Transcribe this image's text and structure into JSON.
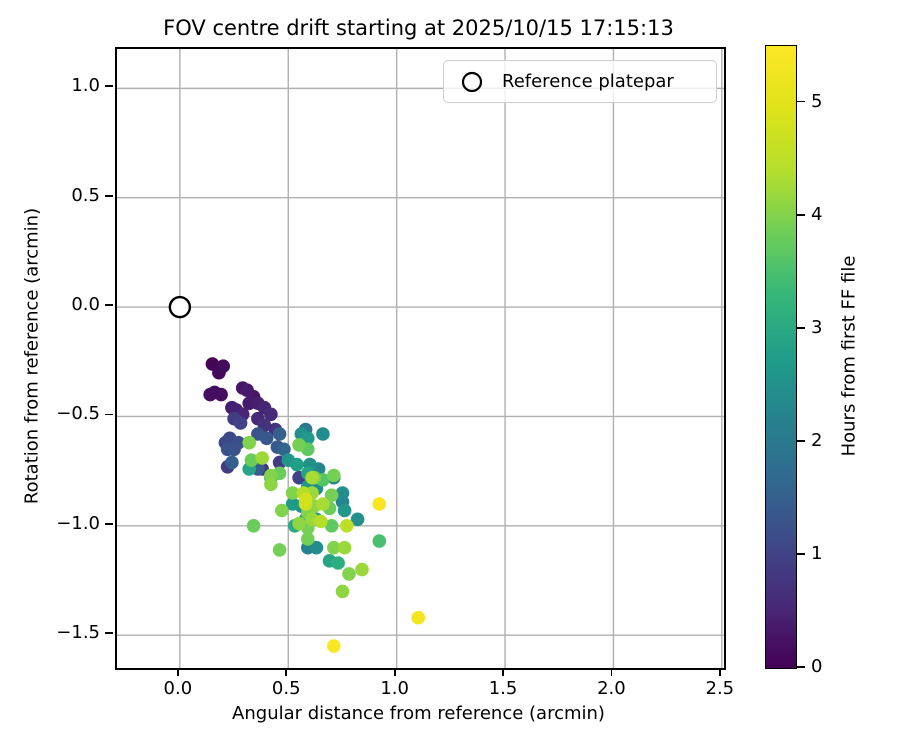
{
  "title": "FOV centre drift starting at 2025/10/15 17:15:13",
  "legend": {
    "label": "Reference platepar"
  },
  "colors": {
    "grid": "#b0b0b0",
    "spine": "#000000",
    "text": "#000000",
    "legend_border": "#cccccc",
    "reference_marker_stroke": "#000000",
    "viridis_stops": [
      "#440154",
      "#482878",
      "#3e4989",
      "#31688e",
      "#26828e",
      "#1f9e89",
      "#35b779",
      "#6ece58",
      "#b5de2b",
      "#dfe318",
      "#fde725"
    ]
  },
  "chart_data": {
    "type": "scatter",
    "title": "FOV centre drift starting at 2025/10/15 17:15:13",
    "xlabel": "Angular distance from reference (arcmin)",
    "ylabel": "Rotation from reference (arcmin)",
    "xlim": [
      -0.29,
      2.51
    ],
    "ylim": [
      -1.65,
      1.18
    ],
    "xticks": [
      0.0,
      0.5,
      1.0,
      1.5,
      2.0,
      2.5
    ],
    "yticks": [
      -1.5,
      -1.0,
      -0.5,
      0.0,
      0.5,
      1.0
    ],
    "grid": true,
    "legend_position": "upper right",
    "reference_point": {
      "x": 0.0,
      "y": 0.0,
      "marker": "open-circle"
    },
    "colorbar": {
      "label": "Hours from first FF file",
      "min": 0,
      "max": 5.5,
      "ticks": [
        0,
        1,
        2,
        3,
        4,
        5
      ],
      "colormap": "viridis"
    },
    "points_xyh": [
      [
        0.15,
        -0.26,
        0.05
      ],
      [
        0.2,
        -0.27,
        0.12
      ],
      [
        0.18,
        -0.3,
        0.08
      ],
      [
        0.14,
        -0.4,
        0.2
      ],
      [
        0.16,
        -0.39,
        0.15
      ],
      [
        0.19,
        -0.4,
        0.18
      ],
      [
        0.29,
        -0.37,
        0.3
      ],
      [
        0.31,
        -0.38,
        0.35
      ],
      [
        0.34,
        -0.41,
        0.28
      ],
      [
        0.24,
        -0.46,
        0.4
      ],
      [
        0.26,
        -0.47,
        0.45
      ],
      [
        0.29,
        -0.49,
        0.5
      ],
      [
        0.32,
        -0.44,
        0.38
      ],
      [
        0.36,
        -0.44,
        0.42
      ],
      [
        0.39,
        -0.46,
        0.52
      ],
      [
        0.42,
        -0.49,
        0.6
      ],
      [
        0.44,
        -0.56,
        0.7
      ],
      [
        0.36,
        -0.51,
        0.55
      ],
      [
        0.39,
        -0.54,
        0.75
      ],
      [
        0.25,
        -0.51,
        0.9
      ],
      [
        0.28,
        -0.53,
        1.0
      ],
      [
        0.23,
        -0.6,
        1.1
      ],
      [
        0.27,
        -0.62,
        1.2
      ],
      [
        0.21,
        -0.62,
        1.05
      ],
      [
        0.36,
        -0.58,
        1.3
      ],
      [
        0.4,
        -0.6,
        1.35
      ],
      [
        0.46,
        -0.58,
        1.5
      ],
      [
        0.45,
        -0.64,
        1.4
      ],
      [
        0.48,
        -0.65,
        1.6
      ],
      [
        0.22,
        -0.65,
        1.3
      ],
      [
        0.25,
        -0.65,
        1.25
      ],
      [
        0.24,
        -0.71,
        1.5
      ],
      [
        0.22,
        -0.73,
        0.9
      ],
      [
        0.36,
        -0.74,
        1.45
      ],
      [
        0.46,
        -0.71,
        0.85
      ],
      [
        0.38,
        -0.74,
        0.8
      ],
      [
        0.55,
        -0.78,
        0.95
      ],
      [
        0.56,
        -0.58,
        2.5
      ],
      [
        0.59,
        -0.6,
        2.7
      ],
      [
        0.66,
        -0.58,
        2.4
      ],
      [
        0.58,
        -0.56,
        2.0
      ],
      [
        0.5,
        -0.7,
        2.6
      ],
      [
        0.54,
        -0.72,
        2.8
      ],
      [
        0.6,
        -0.72,
        2.5
      ],
      [
        0.64,
        -0.74,
        2.3
      ],
      [
        0.59,
        -0.76,
        2.9
      ],
      [
        0.71,
        -0.78,
        2.2
      ],
      [
        0.32,
        -0.74,
        2.9
      ],
      [
        0.42,
        -0.78,
        2.8
      ],
      [
        0.59,
        -0.82,
        2.6
      ],
      [
        0.63,
        -0.83,
        2.4
      ],
      [
        0.52,
        -0.9,
        2.7
      ],
      [
        0.56,
        -0.91,
        2.5
      ],
      [
        0.75,
        -0.89,
        2.3
      ],
      [
        0.76,
        -0.93,
        2.6
      ],
      [
        0.75,
        -0.85,
        2.4
      ],
      [
        0.69,
        -1.16,
        2.9
      ],
      [
        0.73,
        -1.17,
        3.1
      ],
      [
        0.63,
        -0.97,
        2.7
      ],
      [
        0.82,
        -0.97,
        2.5
      ],
      [
        0.59,
        -1.1,
        2.2
      ],
      [
        0.63,
        -1.1,
        2.4
      ],
      [
        0.53,
        -1.0,
        3.0
      ],
      [
        0.58,
        -0.97,
        2.6
      ],
      [
        0.32,
        -0.62,
        4.0
      ],
      [
        0.55,
        -0.63,
        3.9
      ],
      [
        0.59,
        -0.65,
        3.7
      ],
      [
        0.38,
        -0.69,
        4.2
      ],
      [
        0.33,
        -0.7,
        3.8
      ],
      [
        0.42,
        -0.77,
        4.0
      ],
      [
        0.42,
        -0.81,
        4.1
      ],
      [
        0.61,
        -0.78,
        4.3
      ],
      [
        0.66,
        -0.79,
        3.6
      ],
      [
        0.71,
        -0.77,
        3.9
      ],
      [
        0.57,
        -0.85,
        4.4
      ],
      [
        0.61,
        -0.85,
        4.2
      ],
      [
        0.52,
        -0.85,
        4.0
      ],
      [
        0.58,
        -0.88,
        4.8
      ],
      [
        0.62,
        -0.91,
        4.1
      ],
      [
        0.66,
        -0.9,
        4.3
      ],
      [
        0.69,
        -0.92,
        3.8
      ],
      [
        0.59,
        -0.94,
        4.0
      ],
      [
        0.7,
        -0.86,
        3.9
      ],
      [
        0.61,
        -0.97,
        4.2
      ],
      [
        0.65,
        -0.98,
        4.4
      ],
      [
        0.7,
        -1.0,
        3.7
      ],
      [
        0.55,
        -0.99,
        4.1
      ],
      [
        0.59,
        -1.01,
        3.9
      ],
      [
        0.47,
        -0.93,
        4.0
      ],
      [
        0.34,
        -1.0,
        3.8
      ],
      [
        0.46,
        -1.11,
        3.9
      ],
      [
        0.77,
        -1.0,
        4.5
      ],
      [
        0.71,
        -1.1,
        4.0
      ],
      [
        0.76,
        -1.1,
        4.2
      ],
      [
        0.92,
        -1.07,
        3.5
      ],
      [
        0.78,
        -1.22,
        4.0
      ],
      [
        0.84,
        -1.2,
        4.2
      ],
      [
        0.75,
        -1.3,
        4.1
      ],
      [
        0.58,
        -0.9,
        4.7
      ],
      [
        0.59,
        -1.06,
        3.9
      ],
      [
        0.46,
        -0.76,
        3.8
      ],
      [
        0.62,
        -0.78,
        3.95
      ],
      [
        0.92,
        -0.9,
        5.4
      ],
      [
        1.1,
        -1.42,
        5.3
      ],
      [
        0.71,
        -1.55,
        5.45
      ]
    ]
  }
}
